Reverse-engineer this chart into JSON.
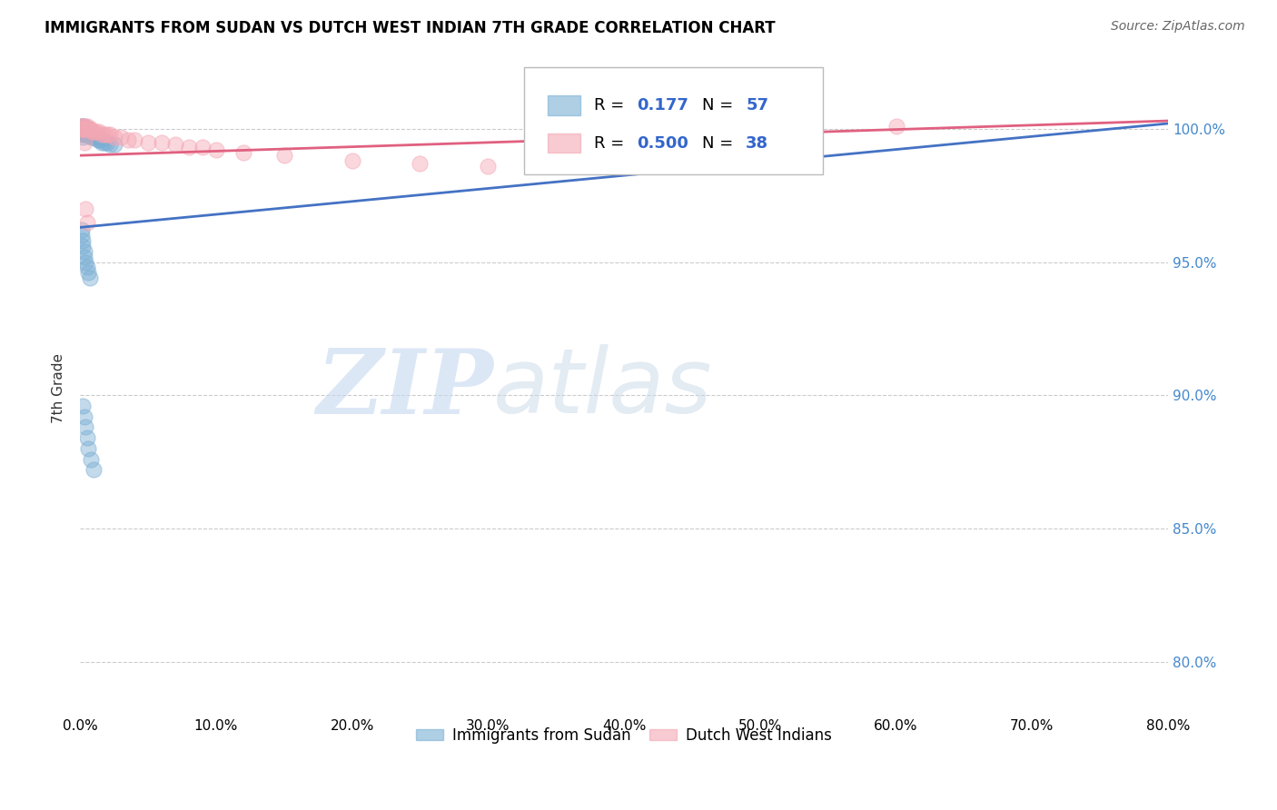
{
  "title": "IMMIGRANTS FROM SUDAN VS DUTCH WEST INDIAN 7TH GRADE CORRELATION CHART",
  "source": "Source: ZipAtlas.com",
  "ylabel_label": "7th Grade",
  "xlim": [
    0.0,
    0.8
  ],
  "ylim": [
    0.78,
    1.025
  ],
  "x_ticks": [
    0.0,
    0.1,
    0.2,
    0.3,
    0.4,
    0.5,
    0.6,
    0.7,
    0.8
  ],
  "x_labels": [
    "0.0%",
    "10.0%",
    "20.0%",
    "30.0%",
    "40.0%",
    "50.0%",
    "60.0%",
    "70.0%",
    "80.0%"
  ],
  "y_ticks": [
    0.8,
    0.85,
    0.9,
    0.95,
    1.0
  ],
  "y_labels": [
    "80.0%",
    "85.0%",
    "90.0%",
    "95.0%",
    "100.0%"
  ],
  "blue_color": "#7BAFD4",
  "pink_color": "#F4A7B4",
  "blue_line_color": "#4472C4",
  "pink_line_color": "#E06080",
  "blue_r": "0.177",
  "blue_n": "57",
  "pink_r": "0.500",
  "pink_n": "38",
  "watermark_zip": "ZIP",
  "watermark_atlas": "atlas",
  "legend_label_blue": "Immigrants from Sudan",
  "legend_label_pink": "Dutch West Indians",
  "sudan_x": [
    0.001,
    0.001,
    0.001,
    0.001,
    0.001,
    0.002,
    0.002,
    0.002,
    0.002,
    0.002,
    0.003,
    0.003,
    0.003,
    0.003,
    0.004,
    0.004,
    0.004,
    0.005,
    0.005,
    0.005,
    0.006,
    0.006,
    0.007,
    0.007,
    0.008,
    0.008,
    0.009,
    0.009,
    0.01,
    0.01,
    0.011,
    0.012,
    0.013,
    0.014,
    0.015,
    0.016,
    0.018,
    0.02,
    0.022,
    0.025,
    0.001,
    0.001,
    0.002,
    0.002,
    0.003,
    0.003,
    0.004,
    0.005,
    0.006,
    0.007,
    0.002,
    0.003,
    0.004,
    0.005,
    0.006,
    0.008,
    0.01
  ],
  "sudan_y": [
    1.001,
    1.001,
    1.0,
    1.0,
    0.999,
    1.001,
    1.0,
    0.999,
    0.998,
    0.997,
    1.001,
    1.0,
    0.999,
    0.998,
    1.0,
    0.999,
    0.998,
    1.0,
    0.999,
    0.998,
    0.999,
    0.998,
    0.999,
    0.998,
    0.998,
    0.997,
    0.998,
    0.997,
    0.998,
    0.997,
    0.997,
    0.997,
    0.996,
    0.996,
    0.996,
    0.995,
    0.995,
    0.995,
    0.994,
    0.994,
    0.962,
    0.96,
    0.958,
    0.956,
    0.954,
    0.952,
    0.95,
    0.948,
    0.946,
    0.944,
    0.896,
    0.892,
    0.888,
    0.884,
    0.88,
    0.876,
    0.872
  ],
  "dwi_x": [
    0.001,
    0.001,
    0.002,
    0.002,
    0.003,
    0.003,
    0.004,
    0.005,
    0.006,
    0.007,
    0.008,
    0.009,
    0.01,
    0.012,
    0.014,
    0.016,
    0.018,
    0.02,
    0.022,
    0.025,
    0.03,
    0.035,
    0.04,
    0.05,
    0.06,
    0.07,
    0.08,
    0.09,
    0.1,
    0.12,
    0.15,
    0.2,
    0.25,
    0.3,
    0.004,
    0.005,
    0.6,
    0.003
  ],
  "dwi_y": [
    1.001,
    1.0,
    1.001,
    1.0,
    1.001,
    1.0,
    1.0,
    1.001,
    1.0,
    1.0,
    1.0,
    0.999,
    0.999,
    0.999,
    0.999,
    0.998,
    0.998,
    0.998,
    0.998,
    0.997,
    0.997,
    0.996,
    0.996,
    0.995,
    0.995,
    0.994,
    0.993,
    0.993,
    0.992,
    0.991,
    0.99,
    0.988,
    0.987,
    0.986,
    0.97,
    0.965,
    1.001,
    0.995
  ],
  "sudan_trendline_x0": 0.0,
  "sudan_trendline_y0": 0.963,
  "sudan_trendline_x1": 0.8,
  "sudan_trendline_y1": 1.002,
  "dwi_trendline_x0": 0.0,
  "dwi_trendline_y0": 0.99,
  "dwi_trendline_x1": 0.8,
  "dwi_trendline_y1": 1.003
}
